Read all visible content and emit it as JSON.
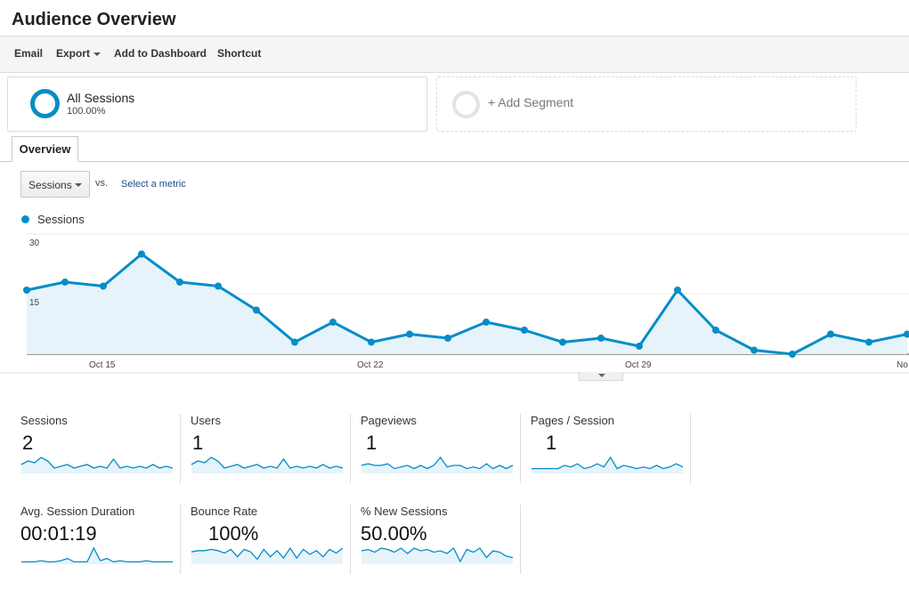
{
  "header": {
    "title": "Audience Overview"
  },
  "toolbar": {
    "email": "Email",
    "export": "Export",
    "add_to_dashboard": "Add to Dashboard",
    "shortcut": "Shortcut"
  },
  "segments": {
    "active": {
      "name": "All Sessions",
      "percent": "100.00%"
    },
    "add_label": "+ Add Segment"
  },
  "tabs": {
    "overview": "Overview"
  },
  "chart_controls": {
    "metric": "Sessions",
    "vs": "vs.",
    "select_metric": "Select a metric"
  },
  "colors": {
    "accent": "#058dc7",
    "area_fill": "#e6f3fa",
    "link": "#1a4e8a"
  },
  "chart_data": {
    "type": "line",
    "series": [
      {
        "name": "Sessions",
        "values": [
          16,
          18,
          17,
          25,
          18,
          17,
          11,
          3,
          8,
          3,
          5,
          4,
          8,
          6,
          3,
          4,
          2,
          16,
          6,
          1,
          0,
          5,
          3,
          5
        ]
      }
    ],
    "x_tick_labels": [
      "Oct 15",
      "Oct 22",
      "Oct 29",
      "No"
    ],
    "y_tick_labels": [
      "30",
      "15"
    ],
    "ylim": [
      0,
      30
    ],
    "grid": true
  },
  "metrics_label_name_row1": [
    "Sessions",
    "Users",
    "Pageviews",
    "Pages / Session"
  ],
  "metrics": [
    {
      "label": "Sessions",
      "value": "2",
      "spark": [
        5,
        7,
        6,
        9,
        7,
        3,
        4,
        5,
        3,
        4,
        5,
        3,
        4,
        3,
        8,
        3,
        4,
        3,
        4,
        3,
        5,
        3,
        4,
        3
      ]
    },
    {
      "label": "Users",
      "value": "1",
      "spark": [
        5,
        7,
        6,
        9,
        7,
        3,
        4,
        5,
        3,
        4,
        5,
        3,
        4,
        3,
        8,
        3,
        4,
        3,
        4,
        3,
        5,
        3,
        4,
        3
      ]
    },
    {
      "label": "Pageviews",
      "value": "1",
      "spark": [
        5,
        6,
        5,
        5,
        6,
        3,
        4,
        5,
        3,
        5,
        3,
        5,
        10,
        4,
        5,
        5,
        3,
        4,
        3,
        6,
        3,
        5,
        3,
        5
      ]
    },
    {
      "label": "Pages / Session",
      "value": "1",
      "spark": [
        3,
        3,
        3,
        3,
        3,
        5,
        4,
        6,
        3,
        4,
        6,
        4,
        10,
        3,
        5,
        4,
        3,
        4,
        3,
        5,
        3,
        4,
        6,
        4
      ]
    },
    {
      "label": "Avg. Session Duration",
      "value": "00:01:19",
      "spark": [
        2,
        2,
        2,
        3,
        2,
        2,
        3,
        5,
        2,
        2,
        2,
        14,
        3,
        5,
        2,
        3,
        2,
        2,
        2,
        3,
        2,
        2,
        2,
        2
      ]
    },
    {
      "label": "Bounce Rate",
      "value": "100%",
      "spark": [
        10,
        11,
        11,
        12,
        11,
        9,
        12,
        6,
        12,
        10,
        4,
        12,
        6,
        11,
        5,
        13,
        5,
        12,
        8,
        11,
        6,
        12,
        9,
        13
      ]
    },
    {
      "label": "% New Sessions",
      "value": "50.00%",
      "spark": [
        10,
        11,
        9,
        12,
        11,
        9,
        12,
        8,
        12,
        10,
        11,
        9,
        10,
        8,
        12,
        2,
        11,
        9,
        12,
        5,
        10,
        9,
        6,
        5
      ]
    }
  ]
}
